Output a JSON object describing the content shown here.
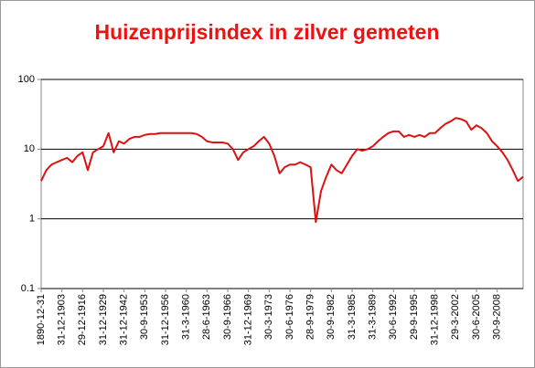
{
  "chart_data": {
    "type": "line",
    "title": "Huizenprijsindex in zilver gemeten",
    "categories": [
      "1890-12-31",
      null,
      null,
      null,
      "31-12-1903",
      null,
      null,
      null,
      "29-12-1916",
      null,
      null,
      null,
      "31-12-1929",
      null,
      null,
      null,
      "31-12-1942",
      null,
      null,
      null,
      "30-9-1953",
      null,
      null,
      null,
      "31-12-1956",
      null,
      null,
      null,
      "31-3-1960",
      null,
      null,
      null,
      "28-6-1963",
      null,
      null,
      null,
      "30-9-1966",
      null,
      null,
      null,
      "31-12-1969",
      null,
      null,
      null,
      "30-3-1973",
      null,
      null,
      null,
      "30-6-1976",
      null,
      null,
      null,
      "28-9-1979",
      null,
      null,
      null,
      "30-9-1982",
      null,
      null,
      null,
      "31-3-1985",
      null,
      null,
      null,
      "31-3-1989",
      null,
      null,
      null,
      "30-6-1992",
      null,
      null,
      null,
      "29-9-1995",
      null,
      null,
      null,
      "31-12-1998",
      null,
      null,
      null,
      "29-3-2002",
      null,
      null,
      null,
      "30-6-2005",
      null,
      null,
      null,
      "30-9-2008",
      null,
      null,
      null,
      null,
      null
    ],
    "values": [
      3.5,
      5,
      6,
      6.5,
      7,
      7.5,
      6.5,
      8,
      9,
      5,
      9,
      10,
      11,
      17,
      9,
      13,
      12,
      14,
      15,
      15,
      16,
      16.5,
      16.5,
      17,
      17,
      17,
      17,
      17,
      17,
      17,
      16.5,
      15,
      13,
      12.5,
      12.5,
      12.5,
      12,
      10,
      7,
      9,
      10,
      11,
      13,
      15,
      12,
      8,
      4.5,
      5.5,
      6,
      6,
      6.5,
      6,
      5.5,
      0.9,
      2.5,
      4,
      6,
      5,
      4.5,
      6,
      8,
      10,
      9.5,
      10,
      11,
      13,
      15,
      17,
      18,
      18,
      15,
      16,
      15,
      16,
      15,
      17,
      17,
      20,
      23,
      25,
      28,
      27,
      25,
      19,
      22,
      20,
      17,
      13,
      11,
      9,
      7,
      5,
      3.5,
      4
    ],
    "color": "#dd1111",
    "ylim": [
      0.1,
      100
    ],
    "yticks": [
      0.1,
      1,
      10,
      100
    ],
    "log_scale": true,
    "grid": true
  }
}
